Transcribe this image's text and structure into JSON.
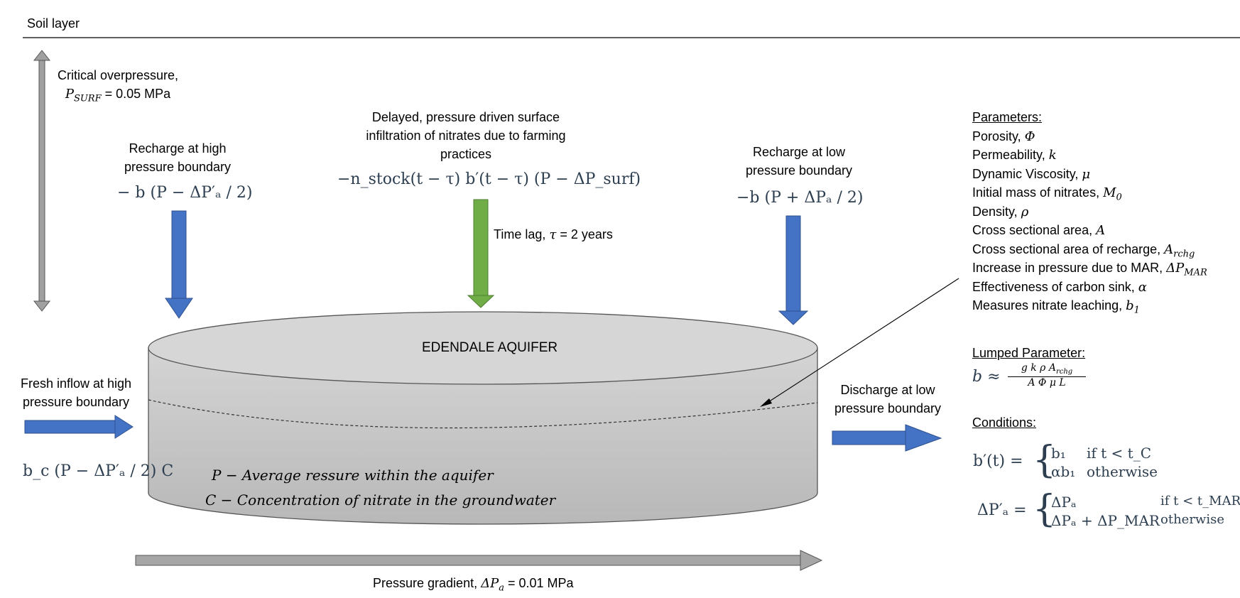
{
  "soil_label": "Soil layer",
  "critical": {
    "line1": "Critical overpressure,",
    "sym": "P",
    "sub": "SURF",
    "rest": " = 0.05 MPa"
  },
  "recharge_high": {
    "line1": "Recharge at high",
    "line2": "pressure boundary",
    "formula": "− b (P − ΔP′ₐ / 2)"
  },
  "infiltration": {
    "line1": "Delayed, pressure driven surface",
    "line2": "infiltration of nitrates due to farming",
    "line3": "practices",
    "formula": "−n_stock(t − τ) b′(t − τ) (P − ΔP_surf)"
  },
  "time_lag": {
    "text": "Time lag, ",
    "sym": "τ",
    "rest": "  = 2 years"
  },
  "recharge_low": {
    "line1": "Recharge at low",
    "line2": "pressure boundary",
    "formula": "−b (P + ΔPₐ / 2)"
  },
  "aquifer": {
    "title": "EDENDALE AQUIFER",
    "legend_p": "P  − Average ressure within the aquifer",
    "legend_c": "C  − Concentration of nitrate in the groundwater"
  },
  "fresh_inflow": {
    "line1": "Fresh inflow at high",
    "line2": "pressure boundary",
    "formula": "b_c (P − ΔP′ₐ / 2) C"
  },
  "discharge": {
    "line1": "Discharge at low",
    "line2": "pressure boundary"
  },
  "gradient": {
    "text": "Pressure gradient, ",
    "sym": "ΔP",
    "sub": "a",
    "rest": " = 0.01 MPa"
  },
  "parameters": {
    "heading": "Parameters:",
    "items": [
      {
        "text": "Porosity, ",
        "sym": "Φ",
        "sub": ""
      },
      {
        "text": "Permeability, ",
        "sym": "k",
        "sub": ""
      },
      {
        "text": "Dynamic Viscosity, ",
        "sym": "μ",
        "sub": ""
      },
      {
        "text": "Initial mass of nitrates, ",
        "sym": "M",
        "sub": "0"
      },
      {
        "text": "Density, ",
        "sym": "ρ",
        "sub": ""
      },
      {
        "text": "Cross sectional area, ",
        "sym": "A",
        "sub": ""
      },
      {
        "text": "Cross sectional area of recharge, ",
        "sym": "A",
        "sub": "rchg"
      },
      {
        "text": "Increase in pressure due to MAR, ",
        "sym": "ΔP",
        "sub": "MAR"
      },
      {
        "text": "Effectiveness of carbon sink, ",
        "sym": "α",
        "sub": ""
      },
      {
        "text": "Measures nitrate leaching, ",
        "sym": "b",
        "sub": "1"
      }
    ]
  },
  "lumped": {
    "heading": "Lumped Parameter:",
    "lhs": "b ≈",
    "numerator": "g k ρ A",
    "numerator_sub": "rchg",
    "denominator": "A Φ μ L"
  },
  "conditions": {
    "heading": "Conditions:",
    "b_lhs": "b′(t) =",
    "b_case1_val": "b₁",
    "b_case1_cond": "if t < t_C",
    "b_case2_val": "αb₁",
    "b_case2_cond": "otherwise",
    "p_lhs": "ΔP′ₐ =",
    "p_case1_val": "ΔPₐ",
    "p_case1_cond": "if t < t_MAR",
    "p_case2_val": "ΔPₐ + ΔP_MAR",
    "p_case2_cond": "otherwise"
  },
  "colors": {
    "blue_arrow": "#4472c4",
    "green_arrow": "#70ad47",
    "grey_arrow": "#a6a6a6",
    "aquifer_top": "#d9d9d9",
    "aquifer_body": "#c4c4c4",
    "math_text": "#2c3e50"
  }
}
